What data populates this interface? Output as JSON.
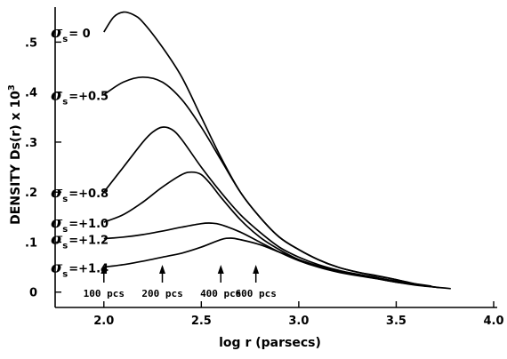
{
  "chart_data": {
    "type": "line",
    "title": "",
    "xlabel": "log r (parsecs)",
    "ylabel": "DENSITY  Ds(r) x 10",
    "ylabel_superscript": "3",
    "xlim": [
      1.75,
      4.0
    ],
    "ylim": [
      -0.02,
      0.57
    ],
    "x_ticks": [
      2.0,
      2.5,
      3.0,
      3.5,
      4.0
    ],
    "x_tick_labels": [
      "2.0",
      "2.5",
      "3.0",
      "3.5",
      "4.0"
    ],
    "y_ticks": [
      0,
      0.1,
      0.2,
      0.3,
      0.4,
      0.5
    ],
    "y_tick_labels": [
      "0",
      ".1",
      ".2",
      ".3",
      ".4",
      ".5"
    ],
    "grid": false,
    "legend": "none",
    "series_symbol": "σ",
    "series_subscript": "s",
    "series": [
      {
        "name": "= 0",
        "x": [
          2.0,
          2.05,
          2.1,
          2.15,
          2.2,
          2.3,
          2.4,
          2.5,
          2.6,
          2.7,
          2.8,
          2.9,
          3.0,
          3.1,
          3.2,
          3.3,
          3.4,
          3.5,
          3.6
        ],
        "y": [
          0.52,
          0.55,
          0.56,
          0.555,
          0.54,
          0.49,
          0.43,
          0.35,
          0.27,
          0.2,
          0.15,
          0.11,
          0.085,
          0.065,
          0.05,
          0.04,
          0.033,
          0.025,
          0.015
        ]
      },
      {
        "name": "=+0.5",
        "x": [
          2.0,
          2.1,
          2.2,
          2.3,
          2.4,
          2.5,
          2.6,
          2.7,
          2.8,
          2.9,
          3.0,
          3.1,
          3.2,
          3.3,
          3.4,
          3.5,
          3.65
        ],
        "y": [
          0.395,
          0.42,
          0.43,
          0.42,
          0.385,
          0.33,
          0.265,
          0.2,
          0.15,
          0.11,
          0.085,
          0.065,
          0.05,
          0.04,
          0.032,
          0.025,
          0.012
        ]
      },
      {
        "name": "=+0.8",
        "x": [
          2.0,
          2.1,
          2.2,
          2.25,
          2.3,
          2.35,
          2.4,
          2.5,
          2.6,
          2.7,
          2.8,
          2.9,
          3.0,
          3.1,
          3.2,
          3.3,
          3.4,
          3.5,
          3.68
        ],
        "y": [
          0.2,
          0.25,
          0.3,
          0.32,
          0.33,
          0.325,
          0.305,
          0.25,
          0.2,
          0.155,
          0.12,
          0.09,
          0.07,
          0.055,
          0.044,
          0.036,
          0.029,
          0.022,
          0.012
        ]
      },
      {
        "name": "=+1.0",
        "x": [
          2.0,
          2.1,
          2.2,
          2.3,
          2.4,
          2.45,
          2.5,
          2.55,
          2.6,
          2.7,
          2.8,
          2.9,
          3.0,
          3.1,
          3.2,
          3.3,
          3.4,
          3.5,
          3.7
        ],
        "y": [
          0.14,
          0.155,
          0.18,
          0.21,
          0.235,
          0.24,
          0.235,
          0.215,
          0.19,
          0.145,
          0.11,
          0.085,
          0.065,
          0.052,
          0.042,
          0.035,
          0.028,
          0.022,
          0.01
        ]
      },
      {
        "name": "=+1.2",
        "x": [
          2.0,
          2.1,
          2.2,
          2.3,
          2.4,
          2.5,
          2.55,
          2.6,
          2.7,
          2.8,
          2.9,
          3.0,
          3.1,
          3.2,
          3.3,
          3.4,
          3.5,
          3.72
        ],
        "y": [
          0.107,
          0.11,
          0.115,
          0.122,
          0.13,
          0.137,
          0.138,
          0.135,
          0.12,
          0.1,
          0.08,
          0.063,
          0.05,
          0.04,
          0.033,
          0.027,
          0.02,
          0.009
        ]
      },
      {
        "name": "=+1.4",
        "x": [
          2.0,
          2.1,
          2.2,
          2.3,
          2.4,
          2.5,
          2.6,
          2.65,
          2.7,
          2.8,
          2.9,
          3.0,
          3.1,
          3.2,
          3.3,
          3.4,
          3.5,
          3.6,
          3.78
        ],
        "y": [
          0.05,
          0.055,
          0.062,
          0.07,
          0.078,
          0.09,
          0.105,
          0.108,
          0.105,
          0.095,
          0.08,
          0.065,
          0.052,
          0.042,
          0.034,
          0.027,
          0.02,
          0.014,
          0.007
        ]
      }
    ],
    "annotations": [
      {
        "text": "100 pcs",
        "x": 2.0
      },
      {
        "text": "200 pcs",
        "x": 2.3
      },
      {
        "text": "400 pcs",
        "x": 2.6
      },
      {
        "text": "600 pcs",
        "x": 2.78
      }
    ]
  }
}
